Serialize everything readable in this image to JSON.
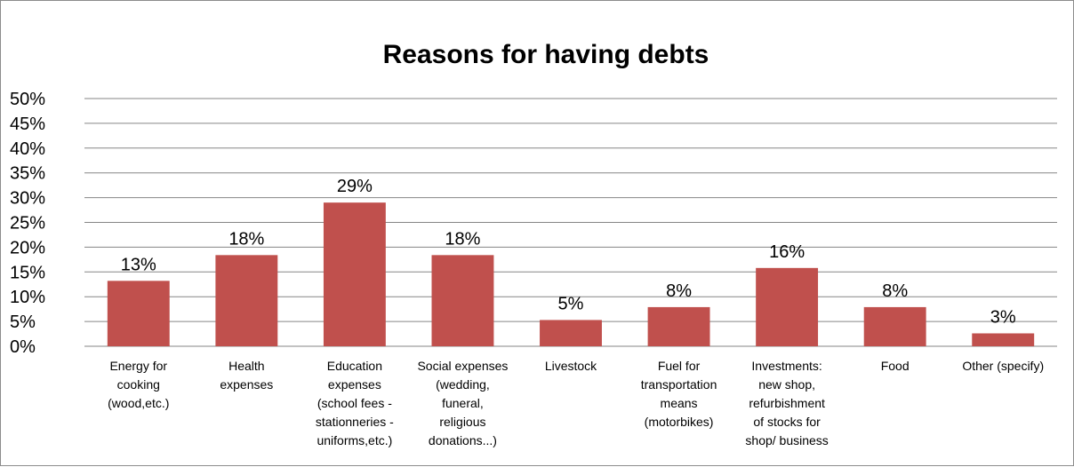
{
  "chart_data": {
    "type": "bar",
    "title": "Reasons for having debts",
    "xlabel": "",
    "ylabel": "",
    "ylim": [
      0,
      50
    ],
    "y_ticks": [
      "0%",
      "5%",
      "10%",
      "15%",
      "20%",
      "25%",
      "30%",
      "35%",
      "40%",
      "45%",
      "50%"
    ],
    "categories": [
      [
        "Energy for",
        "cooking",
        "(wood,etc.)"
      ],
      [
        "Health",
        "expenses"
      ],
      [
        "Education",
        "expenses",
        "(school fees -",
        "stationneries -",
        "uniforms,etc.)"
      ],
      [
        "Social expenses",
        "(wedding,",
        "funeral,",
        "religious",
        "donations...)"
      ],
      [
        "Livestock"
      ],
      [
        "Fuel for",
        "transportation",
        "means",
        "(motorbikes)"
      ],
      [
        "Investments:",
        "new shop,",
        "refurbishment",
        "of stocks for",
        "shop/ business"
      ],
      [
        "Food"
      ],
      [
        "Other (specify)"
      ]
    ],
    "values": [
      13.2,
      18.4,
      29.0,
      18.4,
      5.3,
      7.9,
      15.8,
      7.9,
      2.6
    ],
    "data_labels": [
      "13%",
      "18%",
      "29%",
      "18%",
      "5%",
      "8%",
      "16%",
      "8%",
      "3%"
    ],
    "bar_color": "#c0504d",
    "grid": true,
    "gridline_color": "#868686",
    "legend": "none"
  }
}
